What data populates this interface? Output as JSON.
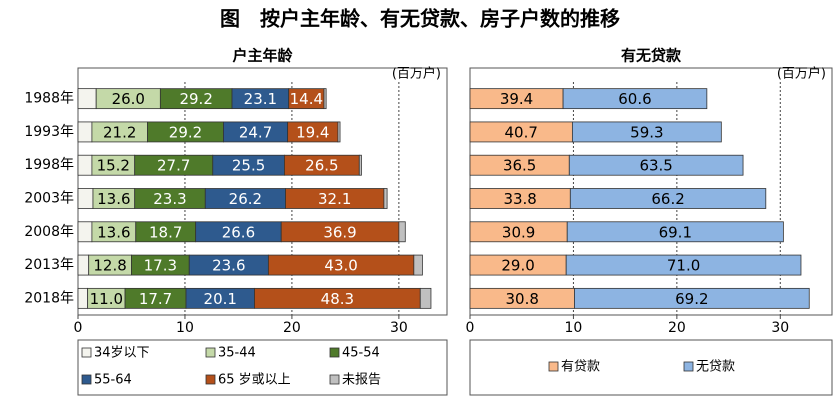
{
  "title": "图　按户主年龄、有无贷款、房子户数的推移",
  "chart_data": [
    {
      "type": "bar",
      "orientation": "horizontal",
      "stacked": true,
      "subtitle": "户主年龄",
      "unit": "(百万户)",
      "categories": [
        "1988年",
        "1993年",
        "1998年",
        "2003年",
        "2008年",
        "2013年",
        "2018年"
      ],
      "xlim": [
        0,
        34.5
      ],
      "xticks": [
        0,
        10,
        20,
        30
      ],
      "grid": true,
      "grid_style": "dashed",
      "series": [
        {
          "name": "34岁以下",
          "color": "#f4f4ee",
          "text_color": "#000000",
          "values": [
            1.7,
            1.3,
            1.3,
            1.4,
            1.3,
            1.0,
            0.9
          ]
        },
        {
          "name": "35-44",
          "color": "#c4d9a8",
          "text_color": "#000000",
          "values": [
            6.0,
            5.2,
            4.0,
            3.9,
            4.1,
            4.0,
            3.5
          ],
          "shares": [
            "26.0",
            "21.2",
            "15.2",
            "13.6",
            "13.6",
            "12.8",
            "11.0"
          ]
        },
        {
          "name": "45-54",
          "color": "#4f7a2a",
          "text_color": "#ffffff",
          "values": [
            6.7,
            7.1,
            7.3,
            6.6,
            5.6,
            5.4,
            5.7
          ],
          "shares": [
            "29.2",
            "29.2",
            "27.7",
            "23.3",
            "18.7",
            "17.3",
            "17.7"
          ]
        },
        {
          "name": "55-64",
          "color": "#2e5a8e",
          "text_color": "#ffffff",
          "values": [
            5.3,
            6.0,
            6.7,
            7.5,
            8.0,
            7.4,
            6.4
          ],
          "shares": [
            "23.1",
            "24.7",
            "25.5",
            "26.2",
            "26.6",
            "23.6",
            "20.1"
          ]
        },
        {
          "name": "65 岁或以上",
          "color": "#b4501a",
          "text_color": "#ffffff",
          "values": [
            3.3,
            4.7,
            7.0,
            9.2,
            11.0,
            13.6,
            15.5
          ],
          "shares": [
            "14.4",
            "19.4",
            "26.5",
            "32.1",
            "36.9",
            "43.0",
            "48.3"
          ]
        },
        {
          "name": "未报告",
          "color": "#c0c0c0",
          "text_color": "#000000",
          "values": [
            0.2,
            0.2,
            0.2,
            0.3,
            0.6,
            0.8,
            1.0
          ]
        }
      ]
    },
    {
      "type": "bar",
      "orientation": "horizontal",
      "stacked": true,
      "subtitle": "有无贷款",
      "unit": "(百万户)",
      "xlim": [
        0,
        35
      ],
      "xticks": [
        0,
        10,
        20,
        30
      ],
      "grid": true,
      "grid_style": "dashed",
      "series": [
        {
          "name": "有贷款",
          "color": "#f9b98a",
          "text_color": "#000000",
          "values": [
            9.0,
            9.9,
            9.6,
            9.7,
            9.4,
            9.3,
            10.1
          ],
          "shares": [
            "39.4",
            "40.7",
            "36.5",
            "33.8",
            "30.9",
            "29.0",
            "30.8"
          ]
        },
        {
          "name": "无贷款",
          "color": "#8db4e2",
          "text_color": "#000000",
          "values": [
            13.9,
            14.4,
            16.8,
            18.9,
            20.9,
            22.7,
            22.7
          ],
          "shares": [
            "60.6",
            "59.3",
            "63.5",
            "66.2",
            "69.1",
            "71.0",
            "69.2"
          ]
        }
      ]
    }
  ]
}
